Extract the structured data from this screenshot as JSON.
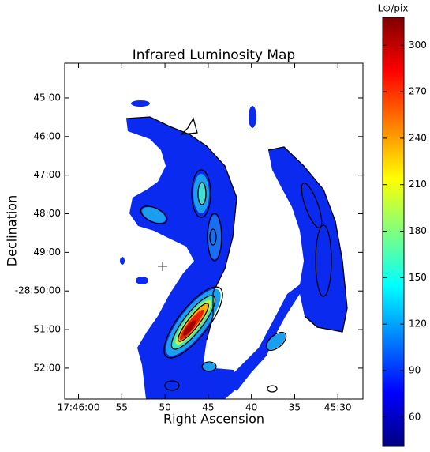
{
  "chart_data": {
    "type": "contour",
    "title": "Infrared Luminosity Map",
    "x_label": "Right Ascension",
    "y_label": "Declination",
    "xlim": [
      61.6,
      27.1
    ],
    "xticks": [
      {
        "value": 60,
        "label": "17:46:00"
      },
      55,
      50,
      45,
      40,
      35,
      {
        "value": 30,
        "label": "45:30"
      }
    ],
    "ylim": [
      -52.8,
      -44.1
    ],
    "yticks": [
      {
        "value": -45,
        "label": "45:00"
      },
      {
        "value": -46,
        "label": "46:00"
      },
      {
        "value": -47,
        "label": "47:00"
      },
      {
        "value": -48,
        "label": "48:00"
      },
      {
        "value": -49,
        "label": "49:00"
      },
      {
        "value": -50,
        "label": "-28:50:00"
      },
      {
        "value": -51,
        "label": "51:00"
      },
      {
        "value": -52,
        "label": "52:00"
      }
    ],
    "colorbar": {
      "label": "L⊙/pix",
      "lim": [
        41,
        318
      ],
      "ticks": [
        60,
        90,
        120,
        150,
        180,
        210,
        240,
        270,
        300
      ],
      "colormap": "jet"
    }
  }
}
